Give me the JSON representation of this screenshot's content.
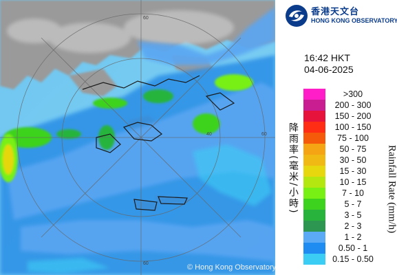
{
  "header": {
    "org_name_zh": "香港天文台",
    "org_name_en": "HONG KONG OBSERVATORY",
    "logo_icon": "hko-logo-icon"
  },
  "timestamp": {
    "time": "16:42 HKT",
    "date": "04-06-2025"
  },
  "legend": {
    "title_en": "Rainfall Rate (mm/h)",
    "title_zh": "降雨率(毫米/小時)",
    "items": [
      {
        "label": ">300",
        "color": "#ff1ec8"
      },
      {
        "label": "200 - 300",
        "color": "#c81e91"
      },
      {
        "label": "150 - 200",
        "color": "#e6143c"
      },
      {
        "label": "100 - 150",
        "color": "#ff2d14"
      },
      {
        "label": "75 - 100",
        "color": "#f55a0a"
      },
      {
        "label": "50 - 75",
        "color": "#f5a514"
      },
      {
        "label": "30 - 50",
        "color": "#f0b914"
      },
      {
        "label": "15 - 30",
        "color": "#e6d70f"
      },
      {
        "label": "10 - 15",
        "color": "#b4e60f"
      },
      {
        "label": "7 - 10",
        "color": "#78f014"
      },
      {
        "label": "5 - 7",
        "color": "#3cd21e"
      },
      {
        "label": "3 - 5",
        "color": "#28b43c"
      },
      {
        "label": "2 - 3",
        "color": "#2d9650"
      },
      {
        "label": "1 - 2",
        "color": "#5aaaf5"
      },
      {
        "label": "0.50 - 1",
        "color": "#1e8cf0"
      },
      {
        "label": "0.15 - 0.50",
        "color": "#3ccdf5"
      }
    ]
  },
  "map": {
    "copyright": "© Hong Kong Observatory",
    "range_ring_labels": [
      "40",
      "60",
      "60",
      "60"
    ]
  }
}
